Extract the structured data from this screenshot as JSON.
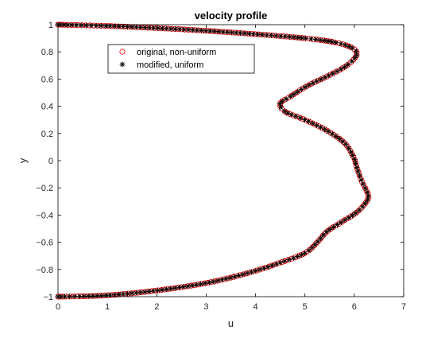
{
  "chart_data": {
    "type": "scatter",
    "title": "velocity profile",
    "xlabel": "u",
    "ylabel": "y",
    "xlim": [
      0,
      7
    ],
    "ylim": [
      -1,
      1
    ],
    "xticks": [
      "0",
      "1",
      "2",
      "3",
      "4",
      "5",
      "6",
      "7"
    ],
    "yticks": [
      "-1",
      "-0.8",
      "-0.6",
      "-0.4",
      "-0.2",
      "0",
      "0.2",
      "0.4",
      "0.6",
      "0.8",
      "1"
    ],
    "grid": false,
    "legend_position": "top-left",
    "series": [
      {
        "name": "original, non-uniform",
        "marker": "circle",
        "color": "#ff0000",
        "style": "dense"
      },
      {
        "name": "modified, uniform",
        "marker": "asterisk",
        "color": "#000000",
        "style": "uniform"
      }
    ],
    "profile": [
      [
        0.0,
        1.0
      ],
      [
        1.0,
        0.99
      ],
      [
        2.0,
        0.975
      ],
      [
        3.0,
        0.955
      ],
      [
        4.0,
        0.93
      ],
      [
        5.0,
        0.9
      ],
      [
        5.6,
        0.87
      ],
      [
        5.95,
        0.83
      ],
      [
        6.05,
        0.78
      ],
      [
        5.85,
        0.7
      ],
      [
        5.45,
        0.62
      ],
      [
        5.05,
        0.55
      ],
      [
        4.7,
        0.47
      ],
      [
        4.5,
        0.42
      ],
      [
        4.6,
        0.36
      ],
      [
        5.0,
        0.3
      ],
      [
        5.45,
        0.22
      ],
      [
        5.8,
        0.13
      ],
      [
        5.98,
        0.03
      ],
      [
        6.05,
        -0.05
      ],
      [
        6.15,
        -0.15
      ],
      [
        6.28,
        -0.25
      ],
      [
        6.25,
        -0.3
      ],
      [
        6.05,
        -0.38
      ],
      [
        5.75,
        -0.45
      ],
      [
        5.45,
        -0.52
      ],
      [
        5.25,
        -0.6
      ],
      [
        5.0,
        -0.68
      ],
      [
        4.5,
        -0.75
      ],
      [
        4.0,
        -0.81
      ],
      [
        3.5,
        -0.86
      ],
      [
        3.0,
        -0.9
      ],
      [
        2.5,
        -0.93
      ],
      [
        2.0,
        -0.955
      ],
      [
        1.5,
        -0.975
      ],
      [
        1.0,
        -0.99
      ],
      [
        0.5,
        -0.997
      ],
      [
        0.0,
        -1.0
      ]
    ]
  }
}
